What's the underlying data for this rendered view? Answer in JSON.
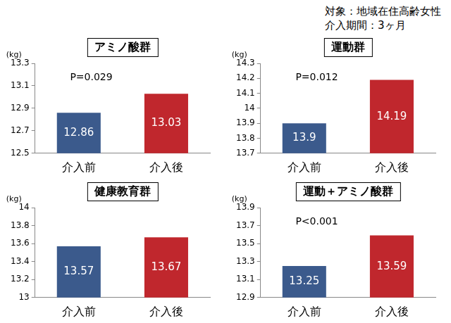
{
  "header": [
    "対象：地域在住高齢女性",
    "介入期間：3ヶ月"
  ],
  "chart_data": [
    {
      "type": "bar",
      "title": "アミノ酸群",
      "y_label": "(kg)",
      "annotations": [
        "P=0.029"
      ],
      "categories": [
        "介入前",
        "介入後"
      ],
      "values": [
        12.86,
        13.03
      ],
      "colors": [
        "#3b5a8c",
        "#c0272d"
      ],
      "ylim": [
        12.5,
        13.3
      ],
      "yticks": [
        12.5,
        12.7,
        12.9,
        13.1,
        13.3
      ],
      "data_labels": true,
      "grid": false
    },
    {
      "type": "bar",
      "title": "運動群",
      "y_label": "(kg)",
      "annotations": [
        "P=0.012"
      ],
      "categories": [
        "介入前",
        "介入後"
      ],
      "values": [
        13.9,
        14.19
      ],
      "colors": [
        "#3b5a8c",
        "#c0272d"
      ],
      "ylim": [
        13.7,
        14.3
      ],
      "yticks": [
        13.7,
        13.8,
        13.9,
        14,
        14.1,
        14.2,
        14.3
      ],
      "data_labels": true,
      "grid": false
    },
    {
      "type": "bar",
      "title": "健康教育群",
      "y_label": "(kg)",
      "annotations": [],
      "categories": [
        "介入前",
        "介入後"
      ],
      "values": [
        13.57,
        13.67
      ],
      "colors": [
        "#3b5a8c",
        "#c0272d"
      ],
      "ylim": [
        13,
        14
      ],
      "yticks": [
        13,
        13.2,
        13.4,
        13.6,
        13.8,
        14
      ],
      "data_labels": true,
      "grid": false
    },
    {
      "type": "bar",
      "title": "運動＋アミノ酸群",
      "y_label": "(kg)",
      "annotations": [
        "P<0.001"
      ],
      "categories": [
        "介入前",
        "介入後"
      ],
      "values": [
        13.25,
        13.59
      ],
      "colors": [
        "#3b5a8c",
        "#c0272d"
      ],
      "ylim": [
        12.9,
        13.9
      ],
      "yticks": [
        12.9,
        13.1,
        13.3,
        13.5,
        13.7,
        13.9
      ],
      "data_labels": true,
      "grid": false
    }
  ]
}
